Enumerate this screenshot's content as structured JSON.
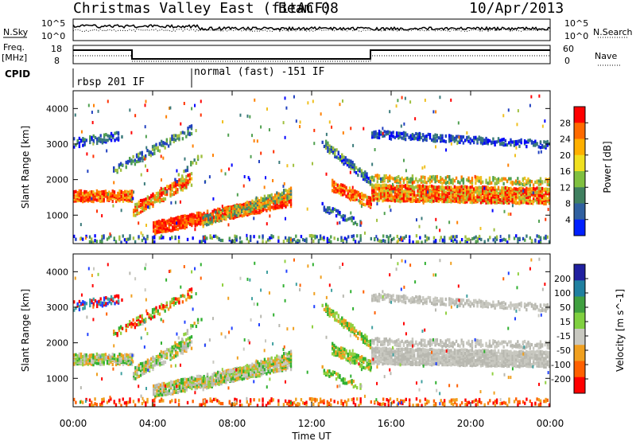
{
  "header": {
    "title": "Christmas Valley East (fitACF)",
    "beam": "Beam 08",
    "date": "10/Apr/2013"
  },
  "nsky_panel": {
    "left_label": "N.Sky",
    "right_label": "N.Search",
    "left_ticks": [
      "10^5",
      "10^0"
    ],
    "right_ticks": [
      "10^5",
      "10^0"
    ]
  },
  "freq_panel": {
    "left_label_1": "Freq.",
    "left_label_2": "[MHz]",
    "right_label": "Nave",
    "left_ticks": [
      "18",
      "8"
    ],
    "right_ticks": [
      "60",
      "0"
    ]
  },
  "cpid_panel": {
    "label": "CPID",
    "modes": [
      "rbsp 201 IF",
      "normal (fast) -151 IF"
    ]
  },
  "chart_data": [
    {
      "type": "heatmap",
      "name": "power",
      "ylabel": "Slant Range [km]",
      "yticks": [
        1000,
        2000,
        3000,
        4000
      ],
      "ylim": [
        200,
        4500
      ],
      "xlim": [
        0,
        24
      ],
      "colorbar_label": "Power [dB]",
      "colorbar_ticks": [
        "28",
        "24",
        "20",
        "16",
        "12",
        "8",
        "4"
      ],
      "colorbar_colors": [
        "#ff0000",
        "#ff6a00",
        "#ffb000",
        "#f0e020",
        "#80c040",
        "#408060",
        "#3060a0",
        "#0020ff"
      ]
    },
    {
      "type": "heatmap",
      "name": "velocity",
      "ylabel": "Slant Range [km]",
      "yticks": [
        1000,
        2000,
        3000,
        4000
      ],
      "ylim": [
        200,
        4500
      ],
      "xlim": [
        0,
        24
      ],
      "colorbar_label": "Velocity [m s^-1]",
      "colorbar_ticks": [
        "200",
        "100",
        "50",
        "15",
        "-15",
        "-50",
        "-100",
        "-200"
      ],
      "colorbar_colors": [
        "#2020a0",
        "#2080a0",
        "#40a040",
        "#80d040",
        "#c8c8c0",
        "#f0a020",
        "#ff6000",
        "#ff0000"
      ]
    }
  ],
  "xaxis": {
    "label": "Time UT",
    "ticks": [
      "00:00",
      "04:00",
      "08:00",
      "12:00",
      "16:00",
      "20:00",
      "00:00"
    ]
  },
  "colors": {
    "power": [
      "#0000ff",
      "#2040c0",
      "#3a7a7a",
      "#50a050",
      "#a0c040",
      "#f0c020",
      "#ff8000",
      "#ff3000",
      "#ff0000"
    ],
    "velocity": [
      "#c8c8c0",
      "#b8b8b0",
      "#90d040",
      "#30b030",
      "#f0a020",
      "#ff6000",
      "#ff0000",
      "#2040ff",
      "#40a0a0"
    ]
  }
}
